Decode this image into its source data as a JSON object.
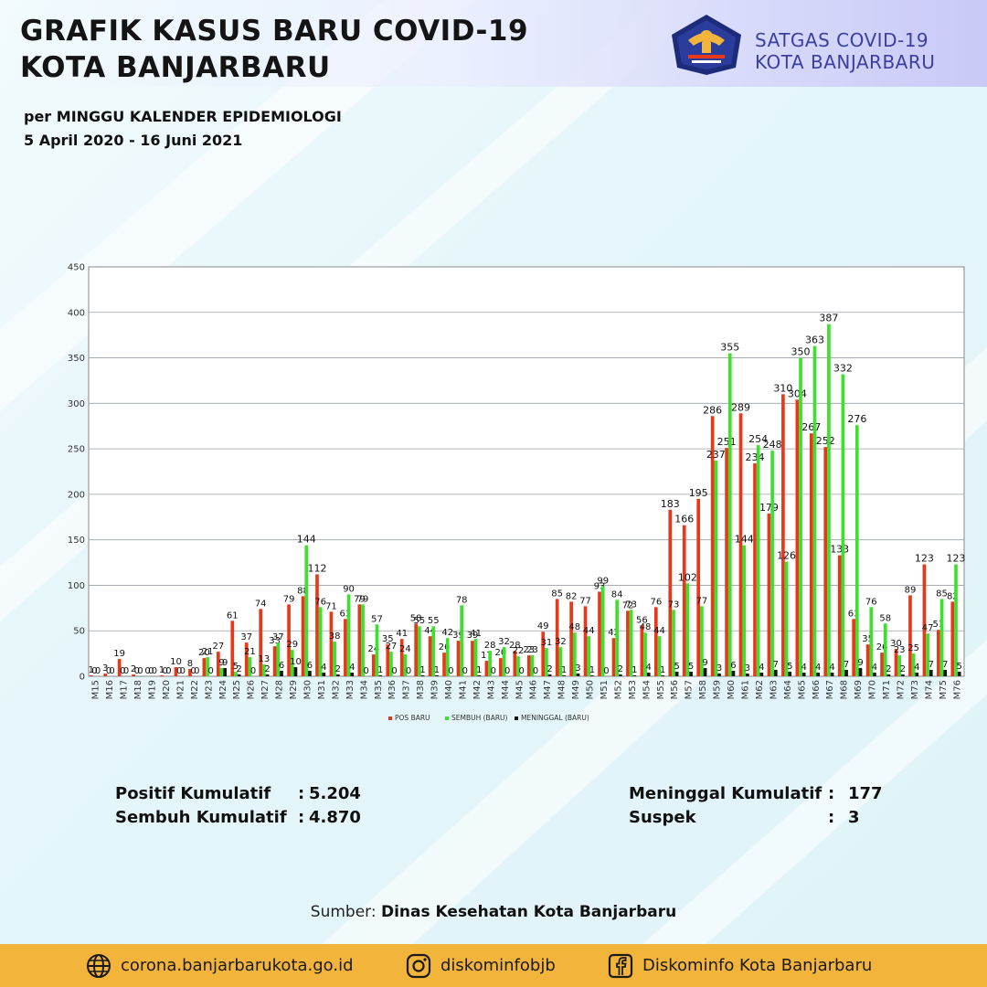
{
  "header": {
    "title_line1": "GRAFIK KASUS BARU COVID-19",
    "title_line2": "KOTA BANJARBARU",
    "subtitle_line1": "per MINGGU KALENDER EPIDEMIOLOGI",
    "subtitle_line2": "5 April 2020 - 16 Juni 2021",
    "org_line1": "SATGAS COVID-19",
    "org_line2": "KOTA BANJARBARU"
  },
  "stats": {
    "positif_label": "Positif Kumulatif",
    "positif_value": "5.204",
    "sembuh_label": "Sembuh Kumulatif",
    "sembuh_value": "4.870",
    "meninggal_label": "Meninggal Kumulatif",
    "meninggal_value": "177",
    "suspek_label": "Suspek",
    "suspek_value": "3"
  },
  "source": {
    "label": "Sumber: ",
    "name": "Dinas Kesehatan Kota Banjarbaru"
  },
  "footer": {
    "website": "corona.banjarbarukota.go.id",
    "instagram": "diskominfobjb",
    "facebook": "Diskominfo Kota Banjarbaru"
  },
  "colors": {
    "pos_baru": "#e8381a",
    "sembuh_baru": "#3de02c",
    "meninggal_baru": "#111111",
    "footer_bg": "#f3b43b",
    "org_text": "#3b3f9e"
  },
  "chart_data": {
    "type": "bar",
    "ylim": [
      0,
      450
    ],
    "yticks": [
      0,
      50,
      100,
      150,
      200,
      250,
      300,
      350,
      400,
      450
    ],
    "grid": true,
    "legend_position": "bottom-center",
    "categories": [
      "M15",
      "M16",
      "M17",
      "M18",
      "M19",
      "M20",
      "M21",
      "M22",
      "M23",
      "M24",
      "M25",
      "M26",
      "M27",
      "M28",
      "M29",
      "M30",
      "M31",
      "M32",
      "M33",
      "M34",
      "M35",
      "M36",
      "M37",
      "M38",
      "M39",
      "M40",
      "M41",
      "M42",
      "M43",
      "M44",
      "M45",
      "M46",
      "M47",
      "M48",
      "M49",
      "M50",
      "M51",
      "M52",
      "M53",
      "M54",
      "M55",
      "M56",
      "M57",
      "M58",
      "M59",
      "M60",
      "M61",
      "M62",
      "M63",
      "M64",
      "M65",
      "M66",
      "M67",
      "M68",
      "M69",
      "M70",
      "M71",
      "M72",
      "M73",
      "M74",
      "M75",
      "M76"
    ],
    "series": [
      {
        "name": "POS BARU",
        "values": [
          1,
          3,
          19,
          2,
          0,
          1,
          10,
          8,
          20,
          27,
          61,
          37,
          74,
          33,
          79,
          88,
          112,
          71,
          63,
          79,
          24,
          35,
          41,
          58,
          44,
          26,
          39,
          39,
          17,
          20,
          28,
          23,
          49,
          85,
          82,
          77,
          93,
          42,
          72,
          56,
          76,
          183,
          166,
          195,
          286,
          251,
          289,
          234,
          179,
          310,
          304,
          267,
          252,
          133,
          63,
          35,
          26,
          30,
          89,
          123,
          51,
          82
        ]
      },
      {
        "name": "SEMBUH (BARU)",
        "values": [
          0,
          0,
          0,
          0,
          0,
          0,
          0,
          0,
          21,
          9,
          5,
          21,
          13,
          37,
          29,
          144,
          76,
          38,
          90,
          79,
          57,
          27,
          24,
          55,
          55,
          42,
          78,
          41,
          28,
          32,
          22,
          23,
          31,
          32,
          48,
          44,
          99,
          84,
          73,
          48,
          44,
          73,
          102,
          77,
          237,
          355,
          144,
          254,
          248,
          126,
          350,
          363,
          387,
          332,
          276,
          76,
          58,
          23,
          25,
          47,
          85,
          123
        ]
      },
      {
        "name": "MENINGGAL (BARU)",
        "values": [
          0,
          0,
          0,
          0,
          0,
          0,
          0,
          0,
          0,
          9,
          2,
          0,
          2,
          6,
          10,
          6,
          4,
          2,
          4,
          0,
          1,
          0,
          0,
          1,
          1,
          0,
          0,
          1,
          0,
          0,
          0,
          0,
          2,
          1,
          3,
          1,
          0,
          2,
          1,
          4,
          1,
          5,
          5,
          9,
          3,
          6,
          3,
          4,
          7,
          5,
          4,
          4,
          4,
          7,
          9,
          4,
          2,
          2,
          4,
          7,
          7,
          5
        ]
      }
    ]
  }
}
